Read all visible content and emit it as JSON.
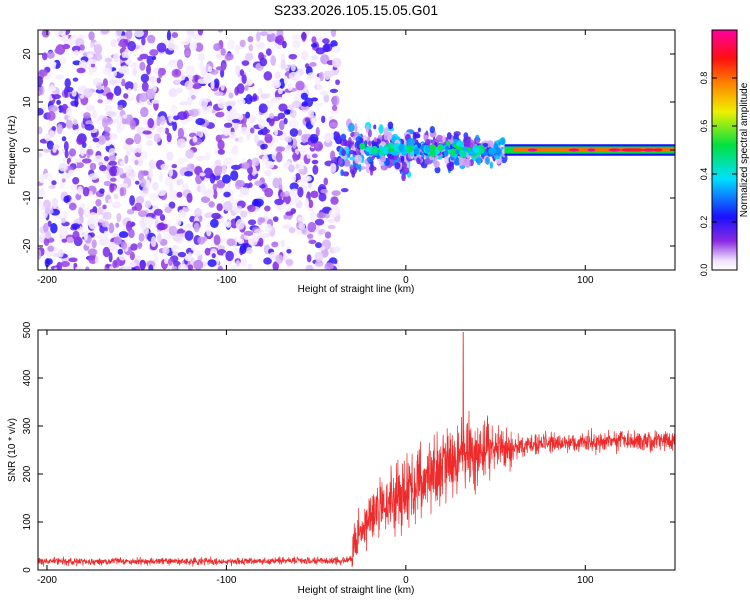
{
  "title": "S233.2026.105.15.05.G01",
  "colors": {
    "spectrogram_purple": "#7020e8",
    "snr_line": "#ee2a2a",
    "axis": "#000000"
  },
  "chart_data": [
    {
      "type": "heatmap",
      "title": "S233.2026.105.15.05.G01",
      "xlabel": "Height of straight line (km)",
      "ylabel": "Frequency (Hz)",
      "xlim": [
        -205,
        150
      ],
      "ylim": [
        -25,
        25
      ],
      "xticks": [
        -200,
        -100,
        0,
        100
      ],
      "yticks": [
        -20,
        -10,
        0,
        10,
        20
      ],
      "colorbar": {
        "label": "Normalized spectral amplitude",
        "range": [
          0,
          1
        ],
        "ticks": [
          0,
          0.2,
          0.4,
          0.6,
          0.8
        ],
        "tick_labels": [
          "0.0",
          "0.2",
          "0.4",
          "0.6",
          "0.8"
        ],
        "colormap": "rainbow (violet-blue-cyan-green-yellow-orange-red-magenta)"
      },
      "description_regions": [
        {
          "x_range": [
            -205,
            -38
          ],
          "freq_range": [
            -25,
            25
          ],
          "amplitude": "low (0.0-0.1), broadband noise"
        },
        {
          "x_range": [
            -38,
            55
          ],
          "freq_range": [
            -10,
            10
          ],
          "amplitude": "mixed 0.1-0.5, concentrated near 0 Hz"
        },
        {
          "x_range": [
            55,
            150
          ],
          "freq_range": [
            -1,
            1
          ],
          "amplitude": "high (0.8-1.0), narrow carrier line at 0 Hz"
        }
      ]
    },
    {
      "type": "line",
      "xlabel": "Height of straight line (km)",
      "ylabel": "SNR (10 * v/v)",
      "xlim": [
        -205,
        150
      ],
      "ylim": [
        0,
        500
      ],
      "xticks": [
        -200,
        -100,
        0,
        100
      ],
      "yticks": [
        0,
        100,
        200,
        300,
        400,
        500
      ],
      "series": [
        {
          "color": "#ee2a2a",
          "trend": {
            "x": [
              -205,
              -100,
              -30,
              -28,
              -20,
              -10,
              0,
              10,
              20,
              30,
              40,
              50,
              60,
              70,
              80,
              100,
              120,
              150
            ],
            "y": [
              18,
              18,
              20,
              60,
              110,
              140,
              160,
              190,
              215,
              245,
              250,
              255,
              255,
              260,
              265,
              265,
              270,
              270
            ]
          },
          "peak": {
            "x": 32,
            "y": 495
          }
        }
      ]
    }
  ]
}
